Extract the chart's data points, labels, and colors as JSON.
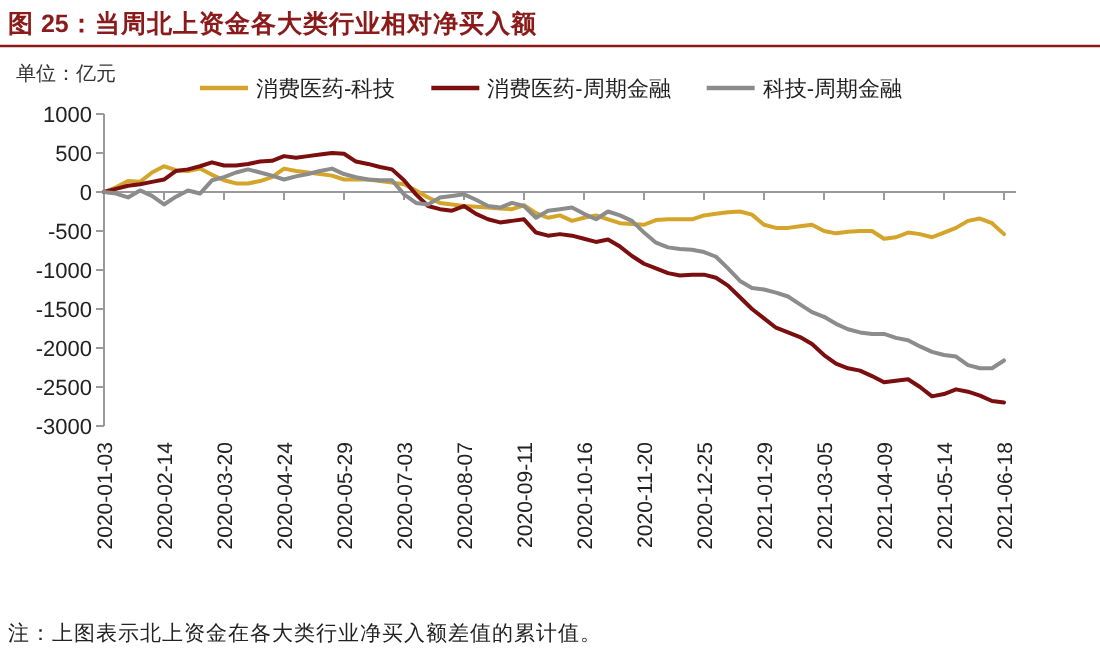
{
  "chart_data": {
    "type": "line",
    "title": "图 25：当周北上资金各大类行业相对净买入额",
    "ylabel": "单位：亿元",
    "annotations": [
      "注：上图表示北上资金在各大类行业净买入额差值的累计值。"
    ],
    "categories": [
      "2020-01-03",
      null,
      null,
      null,
      null,
      "2020-02-14",
      null,
      null,
      null,
      null,
      "2020-03-20",
      null,
      null,
      null,
      null,
      "2020-04-24",
      null,
      null,
      null,
      null,
      "2020-05-29",
      null,
      null,
      null,
      null,
      "2020-07-03",
      null,
      null,
      null,
      null,
      "2020-08-07",
      null,
      null,
      null,
      null,
      "2020-09-11",
      null,
      null,
      null,
      null,
      "2020-10-16",
      null,
      null,
      null,
      null,
      "2020-11-20",
      null,
      null,
      null,
      null,
      "2020-12-25",
      null,
      null,
      null,
      null,
      "2021-01-29",
      null,
      null,
      null,
      null,
      "2021-03-05",
      null,
      null,
      null,
      null,
      "2021-04-09",
      null,
      null,
      null,
      null,
      "2021-05-14",
      null,
      null,
      null,
      null,
      "2021-06-18"
    ],
    "series": [
      {
        "name": "消费医药-科技",
        "color": "#d4a52a",
        "values": [
          0,
          60,
          140,
          130,
          250,
          330,
          280,
          270,
          300,
          220,
          150,
          110,
          110,
          140,
          190,
          300,
          270,
          250,
          230,
          210,
          160,
          160,
          160,
          140,
          120,
          100,
          20,
          -70,
          -140,
          -160,
          -180,
          -190,
          -200,
          -210,
          -220,
          -170,
          -270,
          -330,
          -300,
          -370,
          -330,
          -300,
          -350,
          -400,
          -410,
          -420,
          -360,
          -350,
          -350,
          -350,
          -300,
          -280,
          -260,
          -250,
          -290,
          -420,
          -460,
          -460,
          -440,
          -420,
          -500,
          -530,
          -510,
          -500,
          -500,
          -600,
          -580,
          -520,
          -540,
          -580,
          -520,
          -460,
          -370,
          -340,
          -400,
          -540
        ]
      },
      {
        "name": "消费医药-周期金融",
        "color": "#7b0f0f",
        "values": [
          0,
          40,
          80,
          100,
          130,
          160,
          270,
          290,
          330,
          380,
          340,
          340,
          360,
          390,
          400,
          460,
          440,
          460,
          480,
          500,
          490,
          390,
          360,
          320,
          290,
          150,
          -30,
          -180,
          -220,
          -240,
          -180,
          -280,
          -350,
          -390,
          -370,
          -350,
          -520,
          -560,
          -540,
          -560,
          -600,
          -640,
          -610,
          -700,
          -820,
          -920,
          -980,
          -1040,
          -1070,
          -1060,
          -1060,
          -1100,
          -1200,
          -1350,
          -1500,
          -1620,
          -1740,
          -1800,
          -1860,
          -1950,
          -2090,
          -2200,
          -2260,
          -2290,
          -2360,
          -2440,
          -2420,
          -2400,
          -2500,
          -2620,
          -2590,
          -2530,
          -2560,
          -2610,
          -2680,
          -2700
        ]
      },
      {
        "name": "科技-周期金融",
        "color": "#8c8c8c",
        "values": [
          0,
          -20,
          -70,
          20,
          -50,
          -160,
          -60,
          20,
          -20,
          150,
          190,
          250,
          290,
          250,
          210,
          160,
          200,
          230,
          270,
          300,
          230,
          190,
          160,
          150,
          150,
          -30,
          -140,
          -160,
          -70,
          -50,
          -30,
          -100,
          -180,
          -200,
          -140,
          -180,
          -330,
          -240,
          -220,
          -200,
          -280,
          -350,
          -250,
          -300,
          -370,
          -520,
          -650,
          -710,
          -730,
          -740,
          -770,
          -830,
          -980,
          -1140,
          -1230,
          -1250,
          -1290,
          -1340,
          -1440,
          -1540,
          -1600,
          -1690,
          -1760,
          -1800,
          -1820,
          -1820,
          -1870,
          -1900,
          -1980,
          -2050,
          -2090,
          -2110,
          -2220,
          -2260,
          -2260,
          -2160
        ]
      }
    ],
    "ylim": [
      -3000,
      1000
    ],
    "yticks": [
      1000,
      500,
      0,
      -500,
      -1000,
      -1500,
      -2000,
      -2500,
      -3000
    ],
    "legend": "top",
    "marker": "none",
    "line_style": "solid"
  }
}
